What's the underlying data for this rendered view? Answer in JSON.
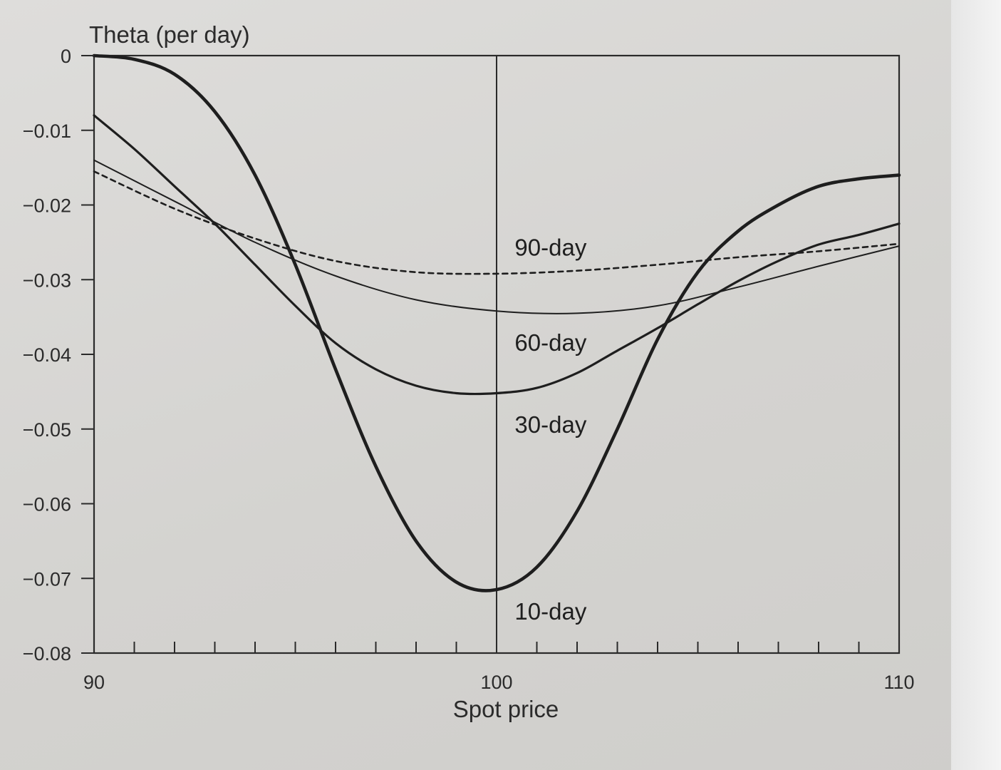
{
  "chart_data": {
    "type": "line",
    "title": "",
    "ylabel": "Theta (per day)",
    "xlabel": "Spot price",
    "xlim": [
      90,
      110
    ],
    "ylim": [
      -0.08,
      0
    ],
    "x_ticks": [
      "90",
      "100",
      "110"
    ],
    "y_ticks": [
      "0",
      "-0.01",
      "-0.02",
      "-0.03",
      "-0.04",
      "-0.05",
      "-0.06",
      "-0.07",
      "-0.08"
    ],
    "grid": false,
    "series": [
      {
        "name": "10-day",
        "style": "solid-thick",
        "x": [
          90,
          91,
          92,
          93,
          94,
          95,
          96,
          97,
          98,
          99,
          100,
          101,
          102,
          103,
          104,
          105,
          106,
          107,
          108,
          109,
          110
        ],
        "y": [
          0.0,
          -0.0005,
          -0.0025,
          -0.0075,
          -0.016,
          -0.028,
          -0.042,
          -0.055,
          -0.065,
          -0.0705,
          -0.0715,
          -0.0685,
          -0.061,
          -0.05,
          -0.038,
          -0.029,
          -0.0235,
          -0.02,
          -0.0175,
          -0.0165,
          -0.016
        ]
      },
      {
        "name": "30-day",
        "style": "solid-medium",
        "x": [
          90,
          91,
          92,
          93,
          94,
          95,
          96,
          97,
          98,
          99,
          100,
          101,
          102,
          103,
          104,
          105,
          106,
          107,
          108,
          109,
          110
        ],
        "y": [
          -0.008,
          -0.0125,
          -0.0175,
          -0.0225,
          -0.028,
          -0.0335,
          -0.0385,
          -0.042,
          -0.0442,
          -0.0452,
          -0.0452,
          -0.0445,
          -0.0425,
          -0.0395,
          -0.0365,
          -0.0333,
          -0.0302,
          -0.0275,
          -0.0253,
          -0.024,
          -0.0225
        ]
      },
      {
        "name": "60-day",
        "style": "solid-thin",
        "x": [
          90,
          92,
          94,
          96,
          98,
          100,
          102,
          104,
          106,
          108,
          110
        ],
        "y": [
          -0.014,
          -0.0195,
          -0.025,
          -0.0295,
          -0.0327,
          -0.0342,
          -0.0345,
          -0.0335,
          -0.031,
          -0.0282,
          -0.0255
        ]
      },
      {
        "name": "90-day",
        "style": "dashed",
        "x": [
          90,
          92,
          94,
          96,
          98,
          100,
          102,
          104,
          106,
          108,
          110
        ],
        "y": [
          -0.0155,
          -0.0205,
          -0.0245,
          -0.0275,
          -0.029,
          -0.0292,
          -0.0288,
          -0.028,
          -0.027,
          -0.0262,
          -0.0252
        ]
      }
    ],
    "annotations": [
      {
        "text": "90-day",
        "x": 100.45,
        "y": -0.0268
      },
      {
        "text": "60-day",
        "x": 100.45,
        "y": -0.0395
      },
      {
        "text": "30-day",
        "x": 100.45,
        "y": -0.0505
      },
      {
        "text": "10-day",
        "x": 100.45,
        "y": -0.0755
      }
    ],
    "vertical_reference_line": 100
  }
}
